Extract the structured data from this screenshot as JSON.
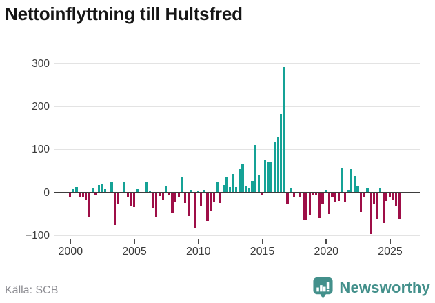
{
  "title": "Nettoinflyttning till Hultsfred",
  "source": "Källa: SCB",
  "brand": {
    "name": "Newsworthy",
    "icon": "newsworthy-bubble-chart-icon",
    "color": "#43908b"
  },
  "colors": {
    "positive": "#15a296",
    "negative": "#9e0e47",
    "grid": "#e3e3e3",
    "zero_axis": "#3d3d3d",
    "tick_label": "#3b3b3b",
    "title_text": "#161616",
    "source_text": "#8b8b91"
  },
  "chart_data": {
    "type": "bar",
    "title": "Nettoinflyttning till Hultsfred",
    "frequency": "quarterly",
    "start": "2000Q1",
    "end": "2025Q4",
    "xlabel": "",
    "ylabel": "",
    "ylim": [
      -110,
      310
    ],
    "grid": "horizontal-only",
    "legend": false,
    "y_ticks": [
      300,
      200,
      100,
      0,
      -100
    ],
    "y_tick_labels": [
      "300",
      "200",
      "100",
      "0",
      "−100"
    ],
    "x_tick_labels": [
      "2000",
      "2005",
      "2010",
      "2015",
      "2020",
      "2025"
    ],
    "series": [
      {
        "name": "Nettoinflyttning",
        "values": [
          -12,
          8,
          13,
          -11,
          -10,
          -17,
          -56,
          9,
          -7,
          18,
          21,
          8,
          0,
          25,
          -76,
          -25,
          0,
          25,
          -12,
          -30,
          -33,
          8,
          0,
          0,
          25,
          4,
          -37,
          -58,
          -8,
          -17,
          16,
          -7,
          -47,
          -21,
          -9,
          37,
          -24,
          -54,
          5,
          -82,
          4,
          -32,
          5,
          -66,
          -42,
          -23,
          26,
          -24,
          18,
          35,
          13,
          43,
          13,
          55,
          66,
          15,
          9,
          27,
          110,
          42,
          -7,
          75,
          73,
          70,
          117,
          128,
          183,
          293,
          -25,
          10,
          -9,
          0,
          -12,
          -64,
          -64,
          -53,
          -7,
          -6,
          -60,
          -28,
          7,
          -50,
          -10,
          -23,
          -20,
          56,
          -23,
          5,
          55,
          38,
          14,
          -45,
          -10,
          9,
          -96,
          -28,
          -63,
          10,
          -71,
          -20,
          -12,
          -18,
          -31,
          -63
        ]
      }
    ]
  }
}
